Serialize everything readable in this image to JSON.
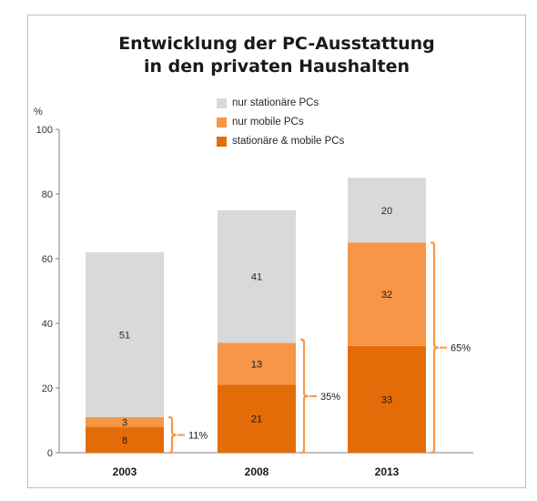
{
  "chart_data": {
    "type": "bar",
    "stacked": true,
    "title": [
      "Entwicklung der PC-Ausstattung",
      "in den privaten Haushalten"
    ],
    "y_unit_label": "%",
    "ylim": [
      0,
      100
    ],
    "yticks": [
      "0",
      "20",
      "40",
      "60",
      "80",
      "100"
    ],
    "categories": [
      "2003",
      "2008",
      "2013"
    ],
    "series": [
      {
        "name": "stationäre & mobile PCs",
        "color": "#e36c09",
        "values": [
          8,
          21,
          33
        ]
      },
      {
        "name": "nur mobile PCs",
        "color": "#f79646",
        "values": [
          3,
          13,
          32
        ]
      },
      {
        "name": "nur stationäre PCs",
        "color": "#d9d9d9",
        "values": [
          51,
          41,
          20
        ]
      }
    ],
    "legend_order": [
      "nur stationäre PCs",
      "nur mobile PCs",
      "stationäre & mobile PCs"
    ],
    "legend_position": "top-center",
    "grid": false,
    "brace_annotations": [
      {
        "category": "2003",
        "value": 11,
        "label": "11%"
      },
      {
        "category": "2008",
        "value": 35,
        "label": "35%"
      },
      {
        "category": "2013",
        "value": 65,
        "label": "65%"
      }
    ],
    "annotation_color": "#f79646"
  }
}
